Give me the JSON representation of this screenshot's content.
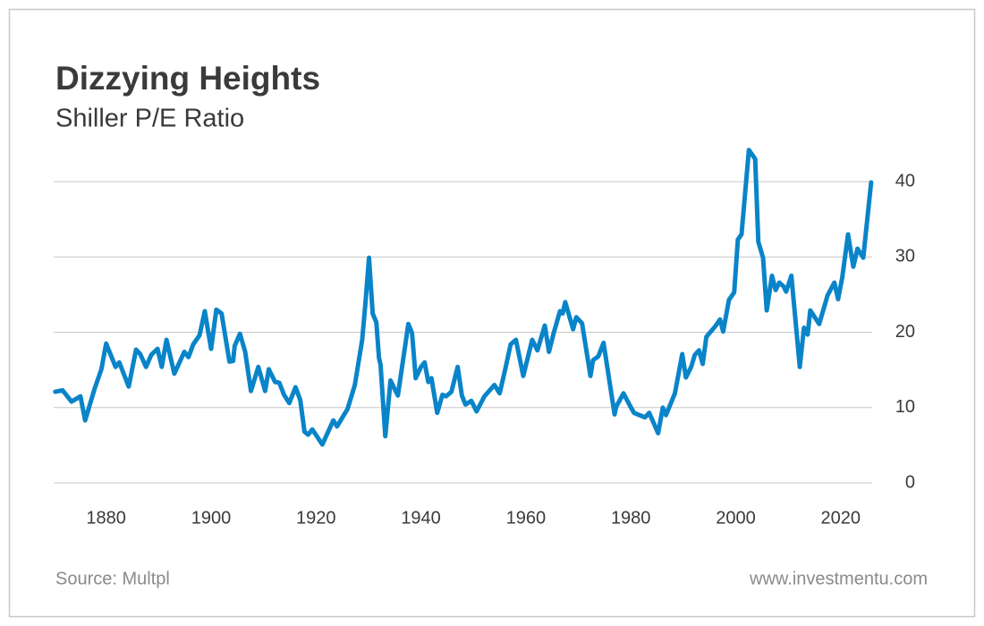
{
  "chart_data": {
    "type": "line",
    "title": "Dizzying Heights",
    "subtitle": "Shiller P/E Ratio",
    "source": "Source: Multpl",
    "website": "www.investmentu.com",
    "color": "#0a84c9",
    "grid": true,
    "xlim": [
      1870,
      2026
    ],
    "xticks": [
      1880,
      1900,
      1920,
      1940,
      1960,
      1980,
      2000,
      2020
    ],
    "ylim": [
      0,
      45
    ],
    "yticks": [
      0,
      10,
      20,
      30,
      40
    ],
    "series": [
      {
        "name": "Shiller P/E Ratio",
        "color": "#0a84c9",
        "x": [
          1870.3,
          1871.7,
          1873.4,
          1875.1,
          1876,
          1877.8,
          1879.1,
          1880,
          1881.8,
          1882.5,
          1884.3,
          1885.7,
          1886.5,
          1887.6,
          1888.6,
          1889.8,
          1890.6,
          1891.5,
          1893,
          1894.9,
          1895.7,
          1896.6,
          1897.8,
          1898.8,
          1900,
          1901,
          1902,
          1903.5,
          1904.2,
          1904.5,
          1905.5,
          1906.5,
          1907.6,
          1909,
          1910.3,
          1911,
          1912.2,
          1913,
          1913.9,
          1914.9,
          1916.1,
          1917,
          1917.8,
          1918.5,
          1919.3,
          1921.2,
          1923.3,
          1924,
          1926,
          1927.4,
          1928.8,
          1929.4,
          1930.1,
          1930.8,
          1931.5,
          1932,
          1932.3,
          1933.2,
          1934.2,
          1935.6,
          1937.6,
          1938.3,
          1939,
          1940,
          1940.7,
          1941.4,
          1942,
          1943.1,
          1944.1,
          1944.8,
          1945.8,
          1947,
          1947.8,
          1948.5,
          1949.6,
          1950.6,
          1952.1,
          1954,
          1955,
          1956.1,
          1957.1,
          1958.1,
          1959.5,
          1961.2,
          1962.2,
          1963.6,
          1964.4,
          1965.3,
          1966.5,
          1967,
          1967.5,
          1969,
          1969.6,
          1970.7,
          1972.3,
          1972.8,
          1973.8,
          1974.8,
          1976.9,
          1977.2,
          1978.6,
          1979.8,
          1980.6,
          1982.7,
          1983.5,
          1985.2,
          1986.1,
          1986.7,
          1988.4,
          1989.8,
          1990.5,
          1991.5,
          1992.2,
          1993,
          1993.7,
          1994.4,
          1996.1,
          1997,
          1997.6,
          1998.7,
          1999.7,
          2000.4,
          2001.1,
          2002.5,
          2003.7,
          2004.3,
          2005.2,
          2005.9,
          2006.9,
          2007.6,
          2008.3,
          2009.1,
          2009.6,
          2010.6,
          2012.2,
          2013,
          2013.7,
          2014.2,
          2015.9,
          2017.5,
          2018.8,
          2019.5,
          2020.3,
          2021.4,
          2022.4,
          2023.2,
          2024.3,
          2025.8
        ],
        "values": [
          12.1,
          12.3,
          10.8,
          11.5,
          8.3,
          12.5,
          15.1,
          18.5,
          15.4,
          16,
          12.8,
          17.7,
          17.1,
          15.4,
          17,
          17.8,
          15.4,
          19,
          14.5,
          17.4,
          16.7,
          18.4,
          19.6,
          22.8,
          17.8,
          23,
          22.5,
          16.1,
          16.2,
          18.2,
          19.8,
          17.4,
          12.2,
          15.4,
          12.2,
          15.1,
          13.4,
          13.3,
          11.7,
          10.6,
          12.7,
          11,
          6.8,
          6.4,
          7.1,
          5.1,
          8.3,
          7.5,
          9.8,
          13,
          19,
          23.7,
          29.9,
          22.5,
          21.3,
          16.6,
          15.7,
          6.2,
          13.6,
          11.6,
          21.1,
          19.9,
          13.9,
          15.4,
          16,
          13.4,
          13.9,
          9.3,
          11.7,
          11.5,
          12.1,
          15.4,
          11.6,
          10.4,
          10.9,
          9.5,
          11.5,
          13,
          11.9,
          15.2,
          18.4,
          19,
          14.2,
          19,
          17.6,
          20.9,
          17.4,
          19.9,
          22.8,
          22.5,
          24,
          20.4,
          22,
          21.2,
          14.2,
          16.3,
          16.8,
          18.6,
          9.1,
          10.1,
          11.9,
          10.3,
          9.3,
          8.7,
          9.3,
          6.6,
          10,
          9,
          11.9,
          17.1,
          14,
          15.4,
          17,
          17.6,
          15.8,
          19.4,
          20.8,
          21.7,
          20.1,
          24.3,
          25.3,
          32.3,
          33,
          44.2,
          43,
          32,
          29.9,
          22.9,
          27.5,
          25.6,
          26.6,
          26.1,
          25.4,
          27.5,
          15.4,
          20.6,
          19.7,
          22.9,
          21.1,
          24.9,
          26.6,
          24.4,
          27.3,
          33,
          28.7,
          31.1,
          29.9,
          39.9
        ]
      }
    ]
  }
}
